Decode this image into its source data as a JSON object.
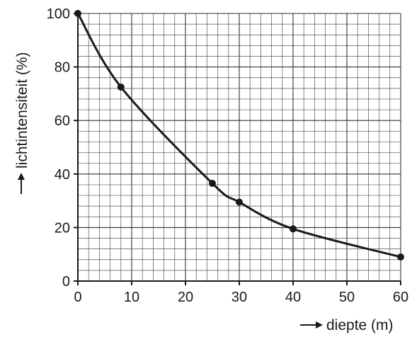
{
  "chart_data": {
    "type": "line",
    "xlabel": "diepte (m)",
    "ylabel": "lichtintensiteit (%)",
    "xlim": [
      0,
      60
    ],
    "ylim": [
      0,
      100
    ],
    "x_ticks": [
      0,
      10,
      20,
      30,
      40,
      50,
      60
    ],
    "y_ticks": [
      0,
      20,
      40,
      60,
      80,
      100
    ],
    "x_tick_labels": [
      "0",
      "10",
      "20",
      "30",
      "40",
      "50",
      "60"
    ],
    "y_tick_labels": [
      "0",
      "20",
      "40",
      "60",
      "80",
      "100"
    ],
    "grid": true,
    "series": [
      {
        "points": [
          {
            "x": 0,
            "y": 100
          },
          {
            "x": 8,
            "y": 72.5
          },
          {
            "x": 25,
            "y": 36.5
          },
          {
            "x": 30,
            "y": 29.5
          },
          {
            "x": 40,
            "y": 19.5
          },
          {
            "x": 60,
            "y": 9
          }
        ]
      }
    ]
  }
}
